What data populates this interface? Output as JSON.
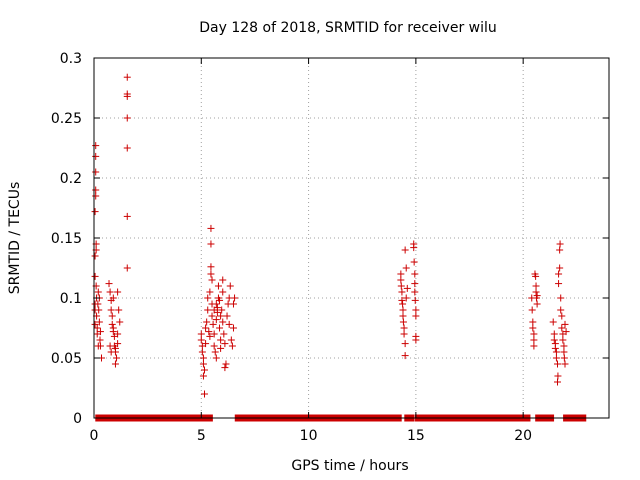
{
  "chart_data": {
    "type": "scatter",
    "title": "Day 128 of 2018, SRMTID for receiver wilu",
    "xlabel": "GPS time / hours",
    "ylabel": "SRMTID / TECUs",
    "xlim": [
      0,
      24
    ],
    "ylim": [
      0,
      0.3
    ],
    "x_ticks": [
      0,
      5,
      10,
      15,
      20
    ],
    "x_tick_labels": [
      "0",
      "5",
      "10",
      "15",
      "20"
    ],
    "y_ticks": [
      0,
      0.05,
      0.1,
      0.15,
      0.2,
      0.25,
      0.3
    ],
    "y_tick_labels": [
      "0",
      "0.05",
      "0.1",
      "0.15",
      "0.2",
      "0.25",
      "0.3"
    ],
    "grid": true,
    "marker": "plus",
    "color": "#cc0000",
    "series": [
      {
        "name": "SRMTID",
        "points": [
          [
            0.05,
            0.172
          ],
          [
            0.05,
            0.135
          ],
          [
            0.05,
            0.118
          ],
          [
            0.05,
            0.095
          ],
          [
            0.05,
            0.09
          ],
          [
            0.05,
            0.078
          ],
          [
            0.08,
            0.227
          ],
          [
            0.08,
            0.218
          ],
          [
            0.08,
            0.205
          ],
          [
            0.08,
            0.19
          ],
          [
            0.08,
            0.185
          ],
          [
            0.1,
            0.145
          ],
          [
            0.1,
            0.14
          ],
          [
            0.1,
            0.11
          ],
          [
            0.12,
            0.1
          ],
          [
            0.12,
            0.085
          ],
          [
            0.15,
            0.075
          ],
          [
            0.15,
            0.07
          ],
          [
            0.18,
            0.095
          ],
          [
            0.2,
            0.105
          ],
          [
            0.22,
            0.09
          ],
          [
            0.25,
            0.08
          ],
          [
            0.28,
            0.065
          ],
          [
            0.3,
            0.06
          ],
          [
            0.35,
            0.05
          ],
          [
            0.25,
            0.1
          ],
          [
            0.2,
            0.06
          ],
          [
            0.3,
            0.072
          ],
          [
            0.7,
            0.112
          ],
          [
            0.75,
            0.105
          ],
          [
            0.8,
            0.098
          ],
          [
            0.8,
            0.09
          ],
          [
            0.85,
            0.085
          ],
          [
            0.85,
            0.078
          ],
          [
            0.9,
            0.075
          ],
          [
            0.9,
            0.072
          ],
          [
            0.95,
            0.068
          ],
          [
            0.95,
            0.06
          ],
          [
            1.0,
            0.058
          ],
          [
            1.0,
            0.055
          ],
          [
            1.0,
            0.045
          ],
          [
            1.05,
            0.05
          ],
          [
            1.1,
            0.062
          ],
          [
            1.1,
            0.07
          ],
          [
            0.9,
            0.1
          ],
          [
            1.1,
            0.105
          ],
          [
            0.75,
            0.06
          ],
          [
            0.8,
            0.055
          ],
          [
            1.2,
            0.08
          ],
          [
            1.15,
            0.09
          ],
          [
            1.55,
            0.284
          ],
          [
            1.55,
            0.27
          ],
          [
            1.55,
            0.268
          ],
          [
            1.55,
            0.25
          ],
          [
            1.55,
            0.225
          ],
          [
            1.55,
            0.168
          ],
          [
            1.55,
            0.125
          ],
          [
            5.0,
            0.07
          ],
          [
            5.0,
            0.065
          ],
          [
            5.05,
            0.06
          ],
          [
            5.05,
            0.055
          ],
          [
            5.1,
            0.05
          ],
          [
            5.1,
            0.045
          ],
          [
            5.1,
            0.035
          ],
          [
            5.15,
            0.02
          ],
          [
            5.15,
            0.04
          ],
          [
            5.2,
            0.062
          ],
          [
            5.2,
            0.075
          ],
          [
            5.25,
            0.08
          ],
          [
            5.3,
            0.09
          ],
          [
            5.3,
            0.1
          ],
          [
            5.35,
            0.072
          ],
          [
            5.4,
            0.068
          ],
          [
            5.4,
            0.105
          ],
          [
            5.45,
            0.12
          ],
          [
            5.45,
            0.126
          ],
          [
            5.45,
            0.145
          ],
          [
            5.45,
            0.158
          ],
          [
            5.5,
            0.115
          ],
          [
            5.5,
            0.095
          ],
          [
            5.5,
            0.085
          ],
          [
            5.55,
            0.078
          ],
          [
            5.6,
            0.07
          ],
          [
            5.6,
            0.06
          ],
          [
            5.65,
            0.055
          ],
          [
            5.7,
            0.05
          ],
          [
            5.7,
            0.082
          ],
          [
            5.75,
            0.088
          ],
          [
            5.75,
            0.092
          ],
          [
            5.8,
            0.1
          ],
          [
            5.8,
            0.11
          ],
          [
            5.85,
            0.098
          ],
          [
            5.85,
            0.075
          ],
          [
            5.9,
            0.065
          ],
          [
            5.9,
            0.058
          ],
          [
            5.95,
            0.09
          ],
          [
            6.0,
            0.105
          ],
          [
            6.0,
            0.08
          ],
          [
            6.05,
            0.07
          ],
          [
            6.1,
            0.062
          ],
          [
            6.1,
            0.042
          ],
          [
            6.15,
            0.045
          ],
          [
            6.2,
            0.085
          ],
          [
            6.25,
            0.095
          ],
          [
            6.3,
            0.1
          ],
          [
            6.35,
            0.11
          ],
          [
            6.4,
            0.065
          ],
          [
            6.45,
            0.06
          ],
          [
            6.5,
            0.075
          ],
          [
            6.5,
            0.095
          ],
          [
            6.55,
            0.1
          ],
          [
            5.6,
            0.09
          ],
          [
            5.7,
            0.095
          ],
          [
            5.9,
            0.085
          ],
          [
            6.0,
            0.115
          ],
          [
            6.3,
            0.078
          ],
          [
            14.3,
            0.12
          ],
          [
            14.3,
            0.115
          ],
          [
            14.32,
            0.11
          ],
          [
            14.35,
            0.105
          ],
          [
            14.35,
            0.098
          ],
          [
            14.38,
            0.095
          ],
          [
            14.4,
            0.09
          ],
          [
            14.4,
            0.085
          ],
          [
            14.42,
            0.08
          ],
          [
            14.45,
            0.075
          ],
          [
            14.45,
            0.07
          ],
          [
            14.5,
            0.062
          ],
          [
            14.5,
            0.052
          ],
          [
            14.5,
            0.14
          ],
          [
            14.55,
            0.125
          ],
          [
            14.55,
            0.1
          ],
          [
            14.6,
            0.108
          ],
          [
            14.9,
            0.145
          ],
          [
            14.9,
            0.142
          ],
          [
            14.92,
            0.13
          ],
          [
            14.95,
            0.12
          ],
          [
            14.95,
            0.112
          ],
          [
            14.95,
            0.105
          ],
          [
            14.97,
            0.098
          ],
          [
            15.0,
            0.09
          ],
          [
            15.0,
            0.085
          ],
          [
            15.0,
            0.068
          ],
          [
            15.0,
            0.065
          ],
          [
            20.4,
            0.1
          ],
          [
            20.42,
            0.09
          ],
          [
            20.45,
            0.08
          ],
          [
            20.45,
            0.075
          ],
          [
            20.5,
            0.07
          ],
          [
            20.5,
            0.065
          ],
          [
            20.5,
            0.06
          ],
          [
            20.55,
            0.12
          ],
          [
            20.58,
            0.118
          ],
          [
            20.6,
            0.11
          ],
          [
            20.6,
            0.105
          ],
          [
            20.62,
            0.1
          ],
          [
            20.65,
            0.095
          ],
          [
            20.65,
            0.102
          ],
          [
            21.4,
            0.08
          ],
          [
            21.45,
            0.07
          ],
          [
            21.45,
            0.065
          ],
          [
            21.5,
            0.062
          ],
          [
            21.5,
            0.058
          ],
          [
            21.55,
            0.055
          ],
          [
            21.55,
            0.05
          ],
          [
            21.6,
            0.045
          ],
          [
            21.6,
            0.03
          ],
          [
            21.62,
            0.035
          ],
          [
            21.65,
            0.112
          ],
          [
            21.65,
            0.12
          ],
          [
            21.7,
            0.125
          ],
          [
            21.7,
            0.14
          ],
          [
            21.72,
            0.145
          ],
          [
            21.75,
            0.1
          ],
          [
            21.75,
            0.09
          ],
          [
            21.8,
            0.085
          ],
          [
            21.8,
            0.075
          ],
          [
            21.85,
            0.07
          ],
          [
            21.85,
            0.065
          ],
          [
            21.9,
            0.06
          ],
          [
            21.9,
            0.055
          ],
          [
            21.92,
            0.05
          ],
          [
            21.95,
            0.045
          ],
          [
            21.95,
            0.078
          ],
          [
            22.0,
            0.072
          ]
        ],
        "zero_runs": [
          [
            0.2,
            0.7
          ],
          [
            0.9,
            1.0
          ],
          [
            1.2,
            4.9
          ],
          [
            5.1,
            5.4
          ],
          [
            6.7,
            14.2
          ],
          [
            14.6,
            14.8
          ],
          [
            15.1,
            20.2
          ],
          [
            20.7,
            21.3
          ],
          [
            22.0,
            22.8
          ]
        ]
      }
    ]
  }
}
